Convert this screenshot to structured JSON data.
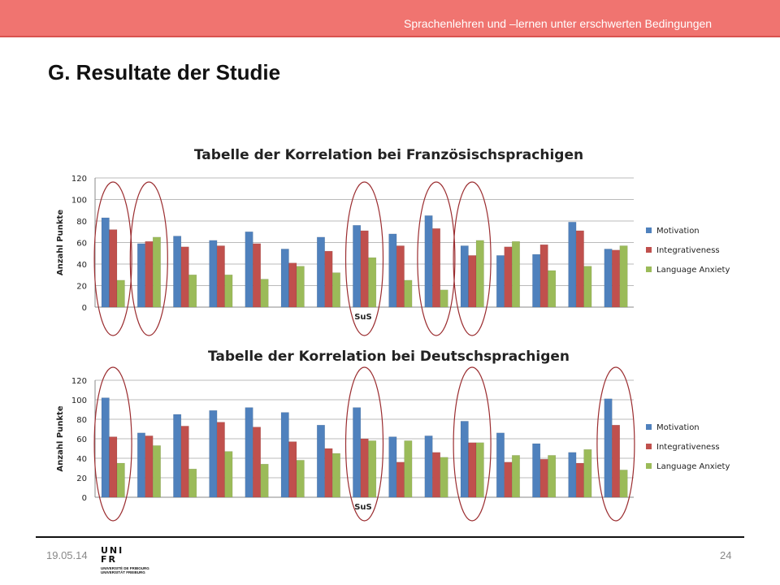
{
  "header": {
    "text": "Sprachenlehren und –lernen unter erschwerten Bedingungen"
  },
  "title": "G. Resultate der Studie",
  "footer": {
    "date": "19.05.14",
    "page": "24"
  },
  "logo": {
    "line1": "UNI",
    "line2": "FR",
    "line3": "UNIVERSITÉ DE FRIBOURG",
    "line4": "UNIVERSITÄT FREIBURG"
  },
  "colors": {
    "Motivation": "#4f81bd",
    "Integrativeness": "#c0504d",
    "Language Anxiety": "#9bbb59",
    "highlight": "#9b2d30"
  },
  "chart_data": [
    {
      "type": "bar",
      "title": "Tabelle der Korrelation bei Französischsprachigen",
      "xlabel": "SuS",
      "ylabel": "Anzahl Punkte",
      "ylim": [
        0,
        120
      ],
      "yticks": [
        0,
        20,
        40,
        60,
        80,
        100,
        120
      ],
      "grid": true,
      "legend": "right",
      "highlighted_groups": [
        0,
        1,
        7,
        9,
        10
      ],
      "series": [
        {
          "name": "Motivation",
          "values": [
            83,
            59,
            66,
            62,
            70,
            54,
            65,
            76,
            68,
            85,
            57,
            48,
            49,
            79,
            54
          ]
        },
        {
          "name": "Integrativeness",
          "values": [
            72,
            61,
            56,
            57,
            59,
            41,
            52,
            71,
            57,
            73,
            48,
            56,
            58,
            71,
            53
          ]
        },
        {
          "name": "Language Anxiety",
          "values": [
            25,
            65,
            30,
            30,
            26,
            38,
            32,
            46,
            25,
            16,
            62,
            61,
            34,
            38,
            57
          ]
        }
      ]
    },
    {
      "type": "bar",
      "title": "Tabelle der Korrelation bei Deutschsprachigen",
      "xlabel": "SuS",
      "ylabel": "Anzahl Punkte",
      "ylim": [
        0,
        120
      ],
      "yticks": [
        0,
        20,
        40,
        60,
        80,
        100,
        120
      ],
      "grid": true,
      "legend": "right",
      "highlighted_groups": [
        0,
        7,
        10,
        14
      ],
      "series": [
        {
          "name": "Motivation",
          "values": [
            102,
            66,
            85,
            89,
            92,
            87,
            74,
            92,
            62,
            63,
            78,
            66,
            55,
            46,
            101
          ]
        },
        {
          "name": "Integrativeness",
          "values": [
            62,
            63,
            73,
            77,
            72,
            57,
            50,
            60,
            36,
            46,
            56,
            36,
            39,
            35,
            74
          ]
        },
        {
          "name": "Language Anxiety",
          "values": [
            35,
            53,
            29,
            47,
            34,
            38,
            45,
            58,
            58,
            41,
            56,
            43,
            43,
            49,
            28
          ]
        }
      ]
    }
  ]
}
